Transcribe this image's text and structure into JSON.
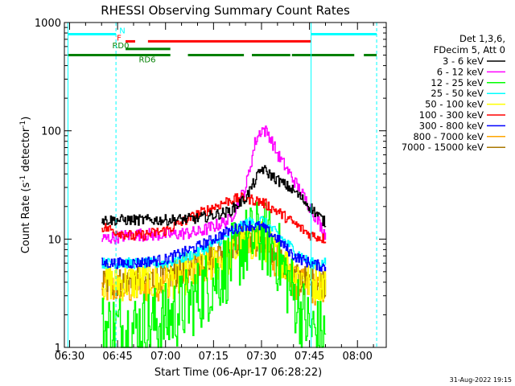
{
  "chart_data": {
    "type": "line",
    "title": "RHESSI Observing Summary Count Rates",
    "xlabel": "Start Time (06-Apr-17 06:28:22)",
    "ylabel_main": "Count Rate (s",
    "ylabel_sup1": "-1",
    "ylabel_mid": " detector",
    "ylabel_sup2": "-1",
    "ylabel_end": ")",
    "y_scale": "log",
    "xlim_minutes": [
      388.37,
      489.0
    ],
    "ylim": [
      1,
      1000
    ],
    "x_ticks": [
      {
        "label": "06:30",
        "minutes": 390
      },
      {
        "label": "06:45",
        "minutes": 405
      },
      {
        "label": "07:00",
        "minutes": 420
      },
      {
        "label": "07:15",
        "minutes": 435
      },
      {
        "label": "07:30",
        "minutes": 450
      },
      {
        "label": "07:45",
        "minutes": 465
      },
      {
        "label": "08:00",
        "minutes": 480
      }
    ],
    "y_ticks": [
      {
        "label": "1",
        "value": 1
      },
      {
        "label": "10",
        "value": 10
      },
      {
        "label": "100",
        "value": 100
      },
      {
        "label": "1000",
        "value": 1000
      }
    ],
    "legend_header": [
      "Det 1,3,6,",
      "FDecim 5, Att 0"
    ],
    "legend_position": "right",
    "series": [
      {
        "name": "3 - 6 keV",
        "color": "#000000",
        "x": [
          400,
          410,
          420,
          430,
          440,
          445,
          448,
          450,
          455,
          460,
          465,
          470
        ],
        "y": [
          15,
          15,
          15,
          15.5,
          18,
          24,
          35,
          45,
          35,
          28,
          20,
          14
        ]
      },
      {
        "name": "6 - 12 keV",
        "color": "#ff00ff",
        "x": [
          400,
          410,
          420,
          430,
          440,
          445,
          448,
          450,
          452,
          455,
          460,
          465,
          470
        ],
        "y": [
          10,
          11,
          11,
          11.5,
          15,
          30,
          80,
          105,
          95,
          60,
          35,
          20,
          11
        ]
      },
      {
        "name": "12 - 25 keV",
        "color": "#00ff00",
        "x": [
          400,
          410,
          420,
          430,
          440,
          445,
          450,
          455,
          460,
          465,
          470
        ],
        "y": [
          1.5,
          1.5,
          1.8,
          3,
          6,
          9,
          11,
          7,
          3,
          1.5,
          1.2
        ]
      },
      {
        "name": "25 - 50 keV",
        "color": "#00ffff",
        "x": [
          400,
          410,
          420,
          430,
          440,
          445,
          450,
          455,
          460,
          465,
          470
        ],
        "y": [
          6,
          6,
          6,
          7.5,
          11,
          14,
          15,
          11,
          8,
          6,
          6
        ]
      },
      {
        "name": "50 - 100 keV",
        "color": "#ffff00",
        "x": [
          400,
          410,
          420,
          430,
          440,
          445,
          450,
          455,
          460,
          465,
          470
        ],
        "y": [
          4,
          4,
          4,
          5,
          7,
          9,
          10,
          7,
          5,
          4,
          4
        ]
      },
      {
        "name": "100 - 300 keV",
        "color": "#ff0000",
        "x": [
          400,
          410,
          420,
          430,
          440,
          445,
          450,
          455,
          460,
          465,
          470
        ],
        "y": [
          13,
          10.5,
          12,
          17,
          23,
          24,
          22,
          18,
          14,
          11,
          10
        ]
      },
      {
        "name": "300 - 800 keV",
        "color": "#0000ff",
        "x": [
          400,
          410,
          420,
          430,
          440,
          445,
          450,
          455,
          460,
          465,
          470
        ],
        "y": [
          6,
          6,
          6.5,
          8.5,
          12,
          13.5,
          13,
          10,
          7,
          6,
          5.5
        ]
      },
      {
        "name": "800 - 7000 keV",
        "color": "#ffa500",
        "x": [
          400,
          410,
          420,
          430,
          440,
          445,
          450,
          455,
          460,
          465,
          470
        ],
        "y": [
          3.5,
          3.5,
          4,
          5.5,
          8,
          10,
          9,
          6,
          4,
          3.5,
          3.5
        ]
      },
      {
        "name": "7000 - 15000 keV",
        "color": "#aa7700",
        "x": [
          400,
          410,
          420,
          430,
          440,
          445,
          450,
          455,
          460,
          465,
          470
        ],
        "y": [
          4,
          4,
          4.5,
          6,
          8.5,
          10.5,
          9.5,
          7,
          4.5,
          4,
          4
        ]
      }
    ],
    "flag_bars": [
      {
        "label": "N",
        "color": "#00ffff",
        "y_value": 780,
        "segments": [
          [
            389.5,
            404.5
          ],
          [
            465.5,
            486.0
          ]
        ]
      },
      {
        "label": "F",
        "color": "#ff0000",
        "y_value": 670,
        "segments": [
          [
            407.5,
            410.5
          ],
          [
            414.5,
            465.5
          ]
        ]
      },
      {
        "label": "RD0",
        "color": "#008000",
        "y_value": 570,
        "segments": [
          [
            407.5,
            421.5
          ]
        ]
      },
      {
        "label": "RD6",
        "color": "#008000",
        "y_value": 500,
        "segments": [
          [
            389.5,
            421.5
          ],
          [
            427.0,
            444.5
          ],
          [
            447.0,
            459.0
          ],
          [
            459.5,
            479.0
          ],
          [
            482.0,
            486.0
          ]
        ]
      }
    ],
    "vertical_markers": [
      {
        "color": "#00ffff",
        "style": "solid",
        "minutes": 389.5
      },
      {
        "color": "#00ffff",
        "style": "dashed",
        "minutes": 404.5
      },
      {
        "color": "#00ffff",
        "style": "solid",
        "minutes": 465.5
      },
      {
        "color": "#00ffff",
        "style": "dashed",
        "minutes": 486.0
      }
    ]
  },
  "timestamp": "31-Aug-2022 19:15"
}
